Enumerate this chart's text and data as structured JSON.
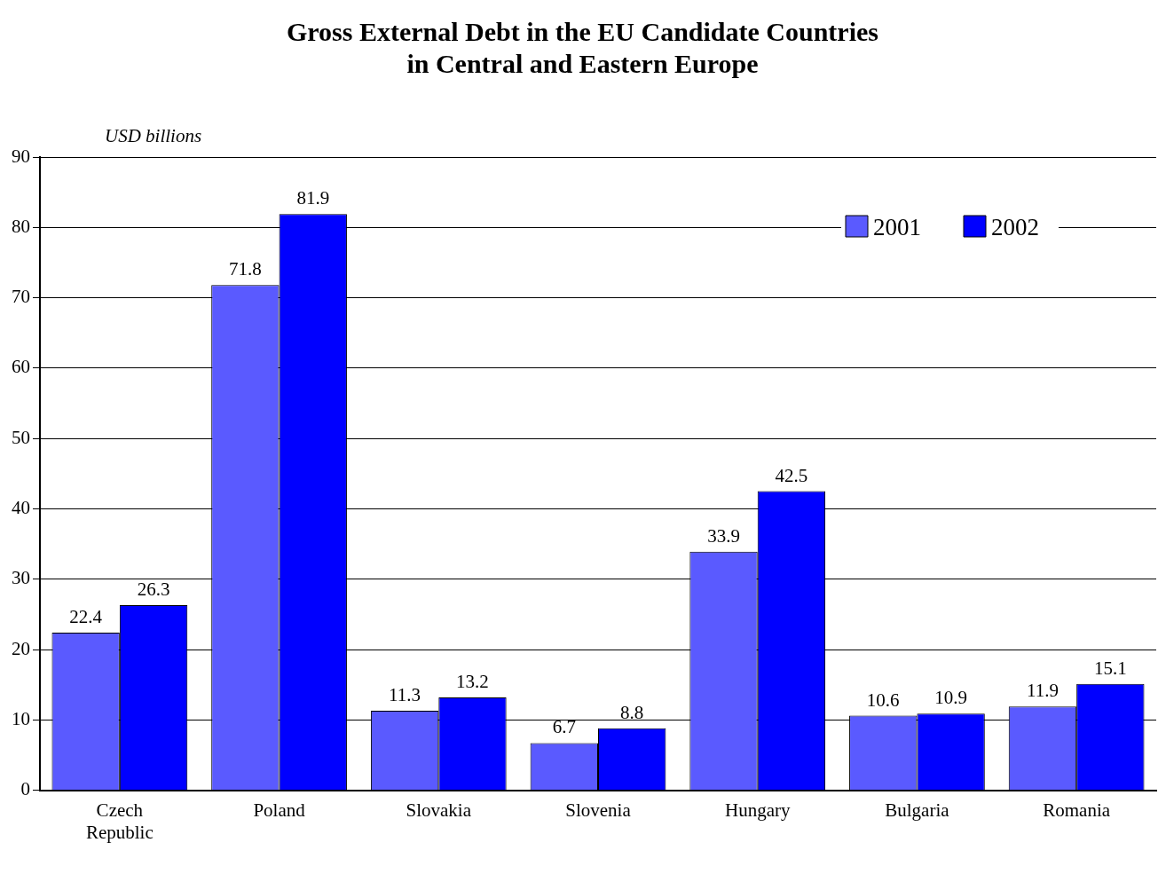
{
  "chart_data": {
    "type": "bar",
    "title": "Gross External Debt in the EU Candidate Countries\nin Central and Eastern Europe",
    "ylabel": "USD billions",
    "categories": [
      "Czech Republic",
      "Poland",
      "Slovakia",
      "Slovenia",
      "Hungary",
      "Bulgaria",
      "Romania"
    ],
    "series": [
      {
        "name": "2001",
        "color": "#5a5aff",
        "values": [
          22.4,
          71.8,
          11.3,
          6.7,
          33.9,
          10.6,
          11.9
        ]
      },
      {
        "name": "2002",
        "color": "#0000ff",
        "values": [
          26.3,
          81.9,
          13.2,
          8.8,
          42.5,
          10.9,
          15.1
        ]
      }
    ],
    "ylim": [
      0,
      90
    ],
    "yticks": [
      0,
      10,
      20,
      30,
      40,
      50,
      60,
      70,
      80,
      90
    ],
    "grid": "y",
    "legend": "top right",
    "data_labels": true
  }
}
